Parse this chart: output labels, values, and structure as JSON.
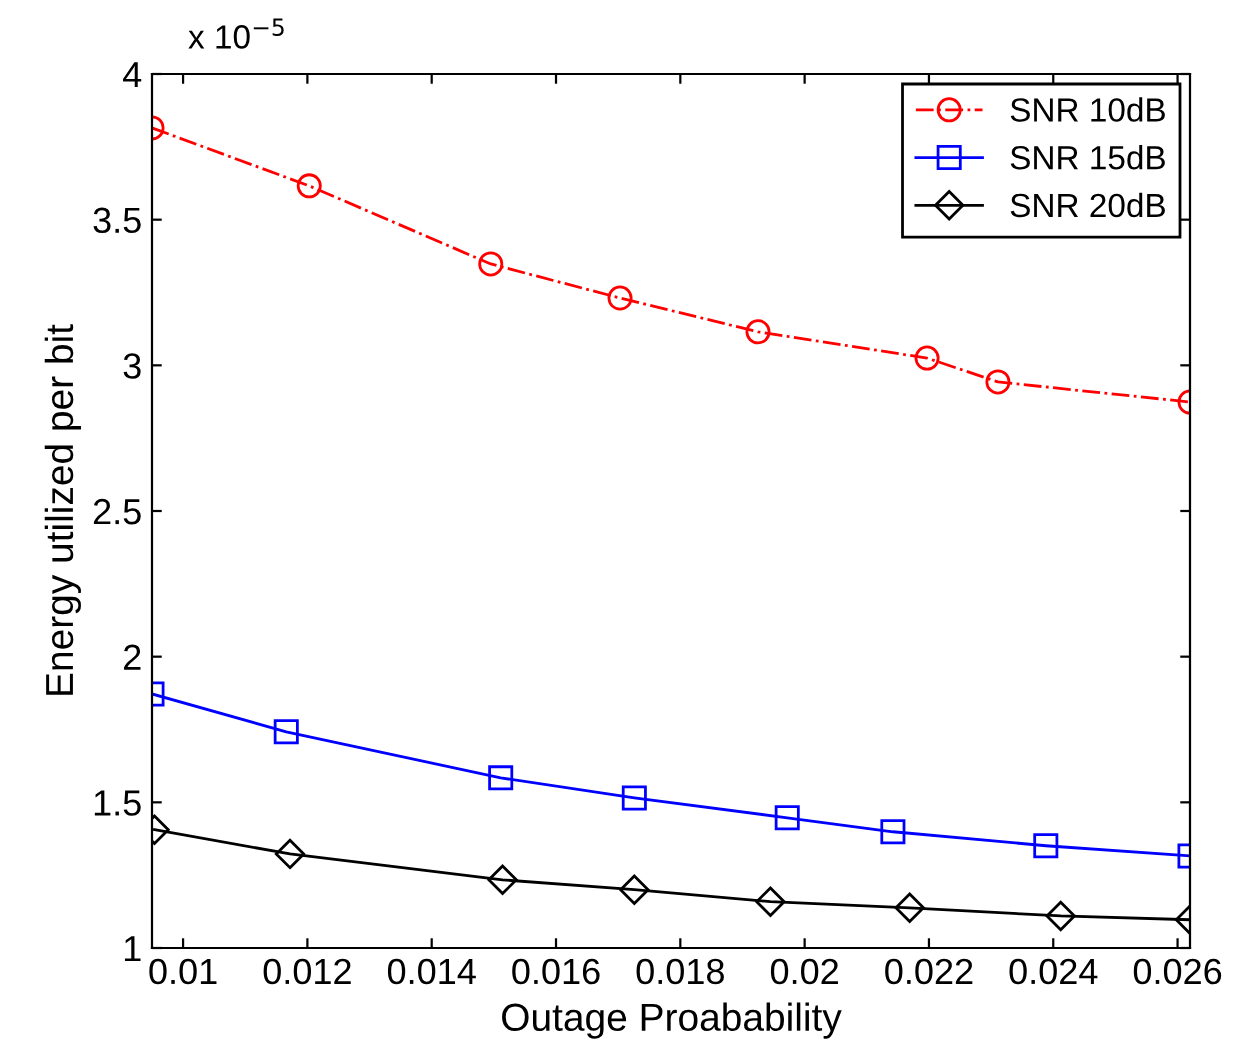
{
  "chart_data": {
    "type": "line",
    "xlabel": "Outage Proabability",
    "ylabel": "Energy utilized per bit",
    "annotations": [
      "x 10$^{−5}$"
    ],
    "xlim": [
      0.0095,
      0.0262
    ],
    "xticks": [
      0.01,
      0.012,
      0.014,
      0.016,
      0.018,
      0.02,
      0.022,
      0.024,
      0.026
    ],
    "ylim": [
      1,
      4
    ],
    "yticks": [
      1,
      1.5,
      2,
      2.5,
      3,
      3.5,
      4
    ],
    "grid": false,
    "legend": "top right",
    "series": [
      {
        "name": "SNR 10dB",
        "color": "#ff0000",
        "marker": "circle",
        "line_style": "dashdot",
        "x": [
          0.0095,
          0.01203,
          0.01495,
          0.01703,
          0.01925,
          0.02197,
          0.02311,
          0.0262
        ],
        "values": [
          3.815,
          3.616,
          3.348,
          3.231,
          3.115,
          3.025,
          2.943,
          2.874
        ]
      },
      {
        "name": "SNR 15dB",
        "color": "#0000ff",
        "marker": "square",
        "line_style": "solid",
        "x": [
          0.0095,
          0.01166,
          0.01511,
          0.01726,
          0.01972,
          0.02142,
          0.02388,
          0.0262
        ],
        "values": [
          1.872,
          1.742,
          1.584,
          1.515,
          1.447,
          1.399,
          1.351,
          1.316
        ]
      },
      {
        "name": "SNR 20dB",
        "color": "#000000",
        "marker": "diamond",
        "line_style": "solid",
        "x": [
          0.00954,
          0.01172,
          0.01514,
          0.01726,
          0.01945,
          0.02169,
          0.02412,
          0.0262
        ],
        "values": [
          1.406,
          1.323,
          1.234,
          1.2,
          1.159,
          1.138,
          1.11,
          1.097
        ]
      }
    ]
  }
}
